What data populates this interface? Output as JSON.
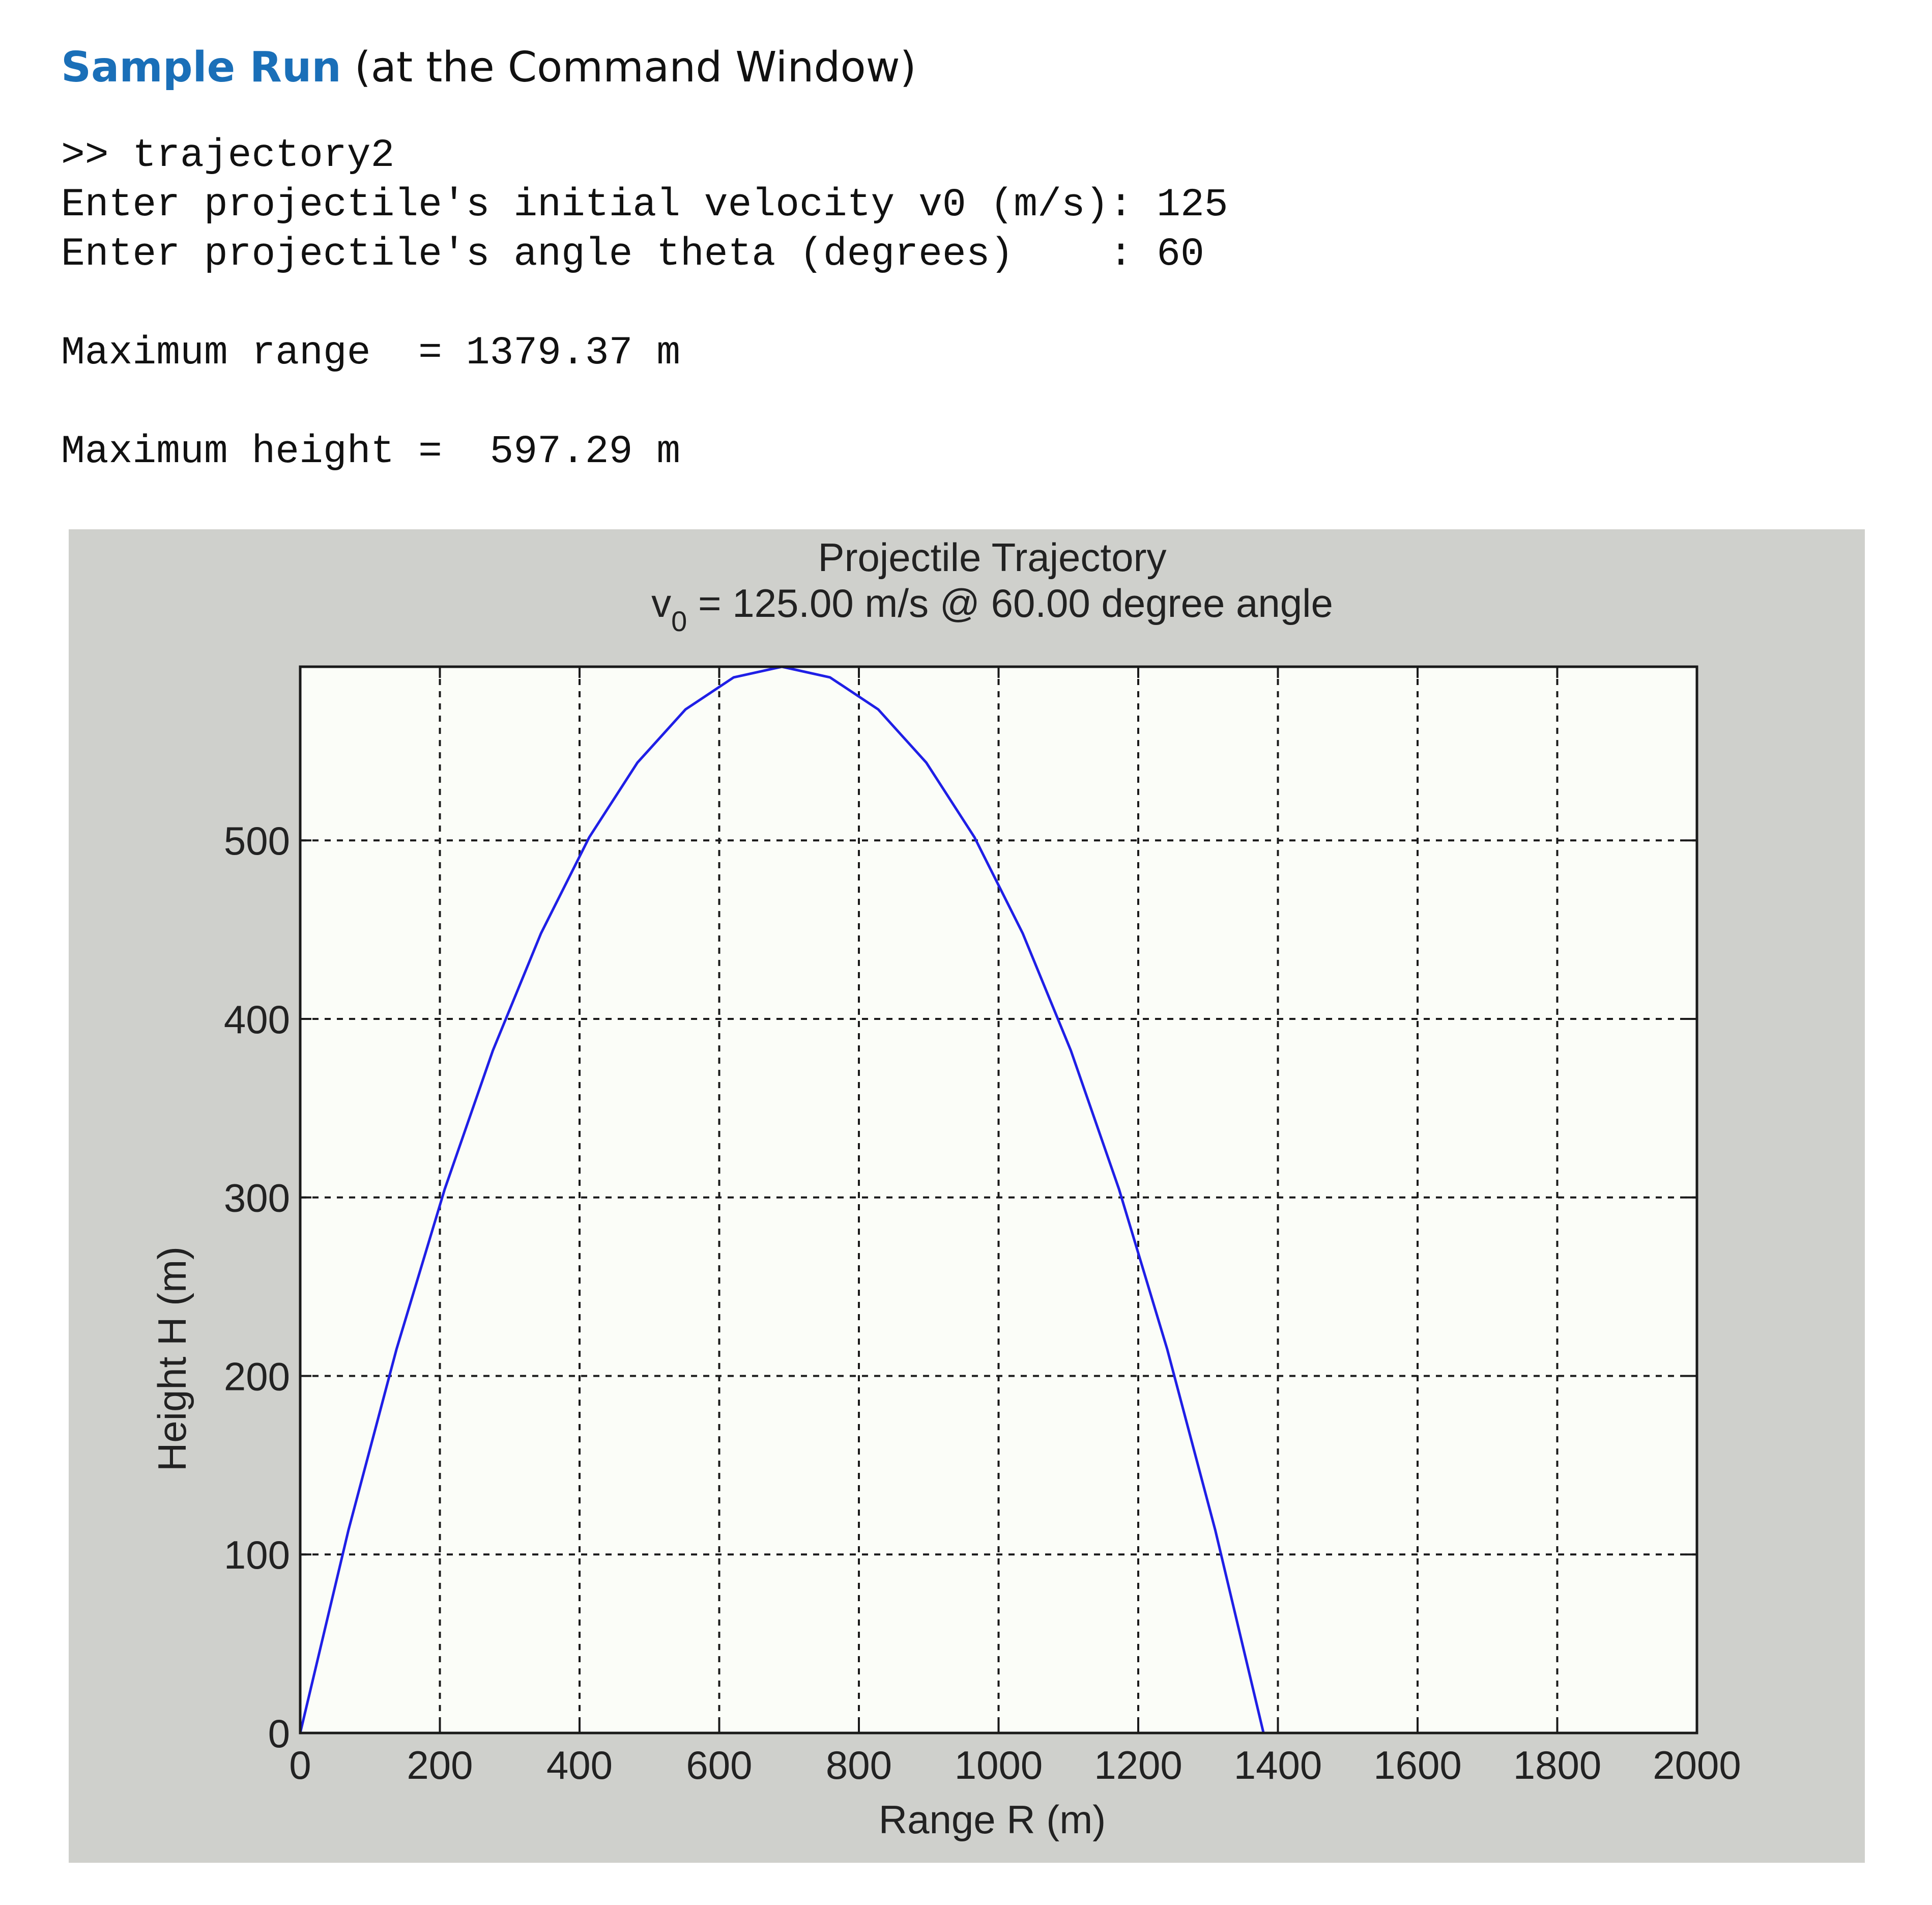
{
  "heading": {
    "emphasis": "Sample Run",
    "rest": "(at the Command Window)"
  },
  "console": {
    "lines": [
      ">> trajectory2",
      "Enter projectile's initial velocity v0 (m/s): 125",
      "Enter projectile's angle theta (degrees)    : 60",
      "",
      "Maximum range  = 1379.37 m",
      "",
      "Maximum height =  597.29 m"
    ]
  },
  "chart_data": {
    "type": "line",
    "title": "Projectile Trajectory",
    "subtitle": {
      "prefix": "v",
      "subscript": "0",
      "text": " = 125.00 m/s @ 60.00 degree angle"
    },
    "xlabel": "Range R (m)",
    "ylabel": "Height H (m)",
    "xlim": [
      0,
      2000
    ],
    "ylim": [
      0,
      597.29
    ],
    "xticks": [
      0,
      200,
      400,
      600,
      800,
      1000,
      1200,
      1400,
      1600,
      1800,
      2000
    ],
    "yticks": [
      0,
      100,
      200,
      300,
      400,
      500
    ],
    "grid": true,
    "grid_style": "dotted",
    "plot_background": "#fbfdf8",
    "figure_background": "#cfd0cc",
    "series": [
      {
        "color": "#1f1fe6",
        "x": [
          0,
          68.97,
          137.94,
          206.91,
          275.87,
          344.84,
          413.81,
          482.78,
          551.75,
          620.72,
          689.69,
          758.65,
          827.62,
          896.59,
          965.56,
          1034.53,
          1103.5,
          1172.46,
          1241.43,
          1310.4,
          1379.37
        ],
        "y": [
          0,
          113.49,
          215.03,
          304.62,
          382.27,
          447.97,
          501.72,
          543.53,
          573.4,
          591.32,
          597.29,
          591.32,
          573.4,
          543.53,
          501.72,
          447.97,
          382.27,
          304.62,
          215.03,
          113.49,
          0
        ]
      }
    ]
  }
}
